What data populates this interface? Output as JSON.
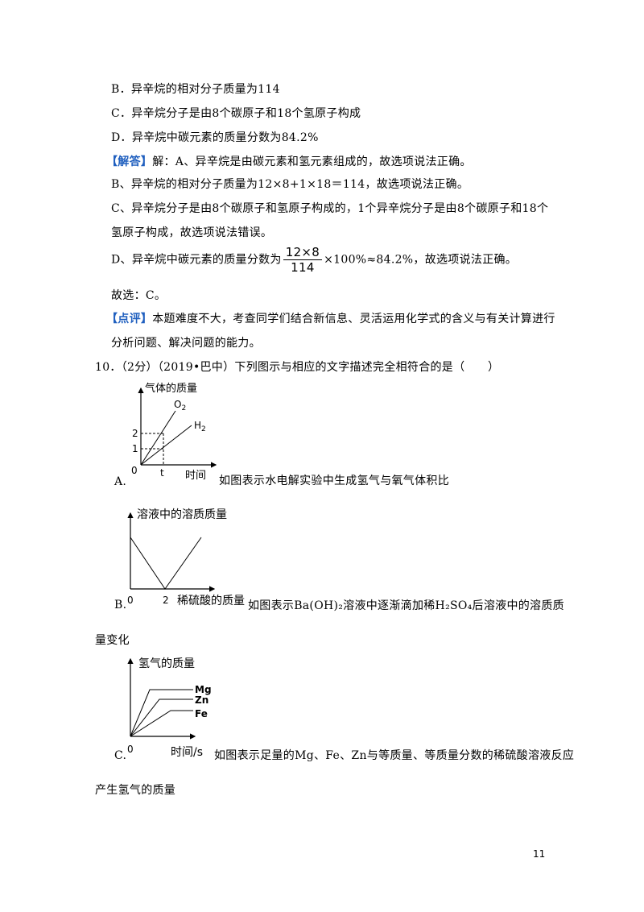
{
  "lines": {
    "b_option": "B．异辛烷的相对分子质量为114",
    "c_option": "C．异辛烷分子是由8个碳原子和18个氢原子构成",
    "d_option": "D．异辛烷中碳元素的质量分数为84.2%",
    "answer_tag": "【解答】",
    "answer_a": "解：A、异辛烷是由碳元素和氢元素组成的，故选项说法正确。",
    "answer_b": "B、异辛烷的相对分子质量为12×8+1×18＝114，故选项说法正确。",
    "answer_c1": "C、异辛烷分子是由8个碳原子和氢原子构成的，1个异辛烷分子是由8个碳原子和18个",
    "answer_c2": "氢原子构成，故选项说法错误。",
    "answer_d_pre": "D、异辛烷中碳元素的质量分数为",
    "answer_d_num": "12×8",
    "answer_d_den": "114",
    "answer_d_post": "×100%≈84.2%，故选项说法正确。",
    "choice": "故选：C。",
    "review_tag": "【点评】",
    "review_1": "本题难度不大，考查同学们结合新信息、灵活运用化学式的含义与有关计算进行",
    "review_2": "分析问题、解决问题的能力。",
    "q10": "10．（2分）（2019•巴中）下列图示与相应的文字描述完全相符合的是（　　）"
  },
  "option_a": {
    "label": "A.",
    "text": "如图表示水电解实验中生成氢气与氧气体积比",
    "chart_data": {
      "type": "line",
      "ylabel": "气体的质量",
      "xlabel": "时间",
      "origin": "0",
      "x_tick": "t",
      "y_ticks": [
        "1",
        "2"
      ],
      "series": [
        {
          "name": "O2",
          "points": [
            [
              0,
              0
            ],
            [
              1,
              2
            ],
            [
              1.5,
              3.2
            ]
          ]
        },
        {
          "name": "H2",
          "points": [
            [
              0,
              0
            ],
            [
              1,
              1
            ],
            [
              2.3,
              2.3
            ]
          ]
        }
      ]
    }
  },
  "option_b": {
    "label": "B.",
    "text": "如图表示Ba(OH)₂溶液中逐渐滴加稀H₂SO₄后溶液中的溶质质",
    "text_cont": "量变化",
    "chart_data": {
      "type": "line",
      "ylabel": "溶液中的溶质质量",
      "xlabel": "稀硫酸的质量",
      "origin": "0",
      "x_tick": "2",
      "series": [
        {
          "name": "",
          "points": [
            [
              0,
              1
            ],
            [
              2,
              0
            ],
            [
              4,
              1
            ]
          ]
        }
      ]
    }
  },
  "option_c": {
    "label": "C.",
    "text": "如图表示足量的Mg、Fe、Zn与等质量、等质量分数的稀硫酸溶液反应",
    "text_cont": "产生氢气的质量",
    "chart_data": {
      "type": "line",
      "ylabel": "氢气的质量",
      "xlabel": "时间/s",
      "origin": "0",
      "series": [
        {
          "name": "Mg",
          "points": [
            [
              0,
              0
            ],
            [
              1,
              3
            ],
            [
              3.5,
              3
            ]
          ]
        },
        {
          "name": "Zn",
          "points": [
            [
              0,
              0
            ],
            [
              1.6,
              2.5
            ],
            [
              3.5,
              2.5
            ]
          ]
        },
        {
          "name": "Fe",
          "points": [
            [
              0,
              0
            ],
            [
              2.4,
              2
            ],
            [
              3.5,
              2
            ]
          ]
        }
      ]
    }
  },
  "page_number": "11"
}
